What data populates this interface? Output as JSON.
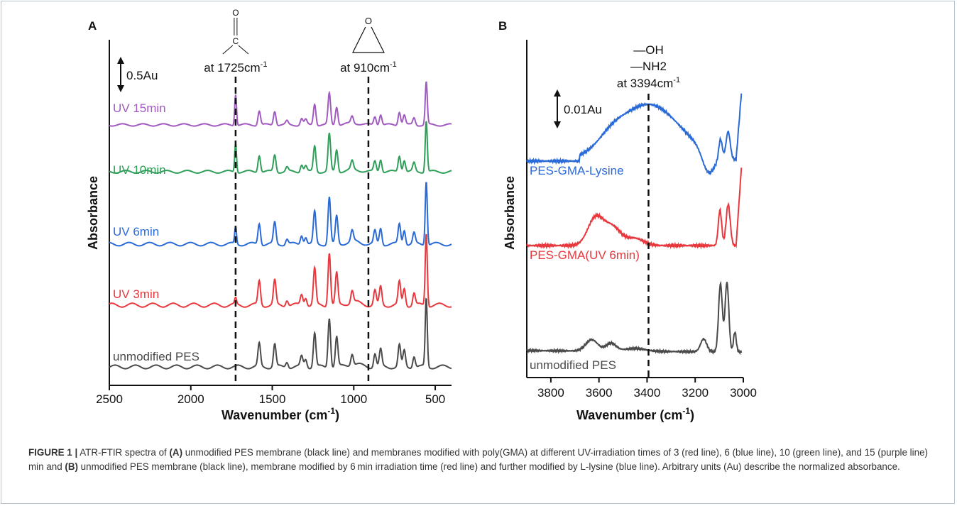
{
  "figure": {
    "caption_label": "FIGURE 1 |",
    "caption_parts": [
      "ATR-FTIR spectra of ",
      "(A)",
      " unmodified PES membrane (black line) and membranes modified with poly(GMA) at different UV-irradiation times of 3 (red line), 6 (blue line), 10 (green line), and 15 (purple line) min and ",
      "(B)",
      " unmodified PES membrane (black line), membrane modified by 6 min irradiation time (red line) and further modified by L-lysine (blue line). Arbitrary units (Au) describe the normalized absorbance."
    ]
  },
  "colors": {
    "black": "#4a4a4a",
    "red": "#e8383d",
    "blue": "#2a6ad6",
    "green": "#2f9e58",
    "purple": "#a05ac0"
  },
  "chart_data": [
    {
      "panel": "A",
      "type": "line",
      "xlabel": "Wavenumber (cm",
      "xlabel_sup": "-1",
      "xlabel_end": ")",
      "ylabel": "Absorbance",
      "xlim": [
        2500,
        400
      ],
      "xticks": [
        "2500",
        "2000",
        "1500",
        "1000",
        "500"
      ],
      "scale_bar": "0.5Au",
      "annotations": [
        {
          "label": "at 1725cm",
          "sup": "-1",
          "x": 1725,
          "structure": "carbonyl",
          "atom": "O",
          "atom2": "C"
        },
        {
          "label": "at 910cm",
          "sup": "-1",
          "x": 910,
          "structure": "epoxide",
          "atom": "O"
        }
      ],
      "series": [
        {
          "name": "UV 15min",
          "color": "#a05ac0"
        },
        {
          "name": "UV 10min",
          "color": "#2f9e58"
        },
        {
          "name": "UV 6min",
          "color": "#2a6ad6"
        },
        {
          "name": "UV 3min",
          "color": "#e8383d"
        },
        {
          "name": "unmodified PES",
          "color": "#4a4a4a"
        }
      ],
      "peaks": [
        1725,
        1580,
        1485,
        1410,
        1320,
        1295,
        1240,
        1150,
        1105,
        1010,
        870,
        835,
        720,
        690,
        630,
        555
      ]
    },
    {
      "panel": "B",
      "type": "line",
      "xlabel": "Wavenumber (cm",
      "xlabel_sup": "-1",
      "xlabel_end": ")",
      "ylabel": "Absorbance",
      "xlim": [
        3900,
        3000
      ],
      "xticks": [
        "3800",
        "3600",
        "3400",
        "3200",
        "3000"
      ],
      "scale_bar": "0.01Au",
      "annotations": [
        {
          "line1": "—OH",
          "line2": "—NH2",
          "label": "at 3394cm",
          "sup": "-1",
          "x": 3394
        }
      ],
      "series": [
        {
          "name": "PES-GMA-Lysine",
          "color": "#2a6ad6"
        },
        {
          "name": "PES-GMA(UV 6min)",
          "color": "#e8383d"
        },
        {
          "name": "unmodified PES",
          "color": "#4a4a4a"
        }
      ]
    }
  ]
}
